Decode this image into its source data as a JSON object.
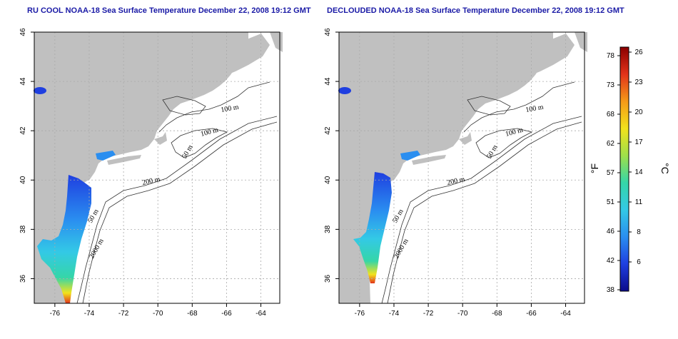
{
  "panels": [
    {
      "title": "RU COOL NOAA-18 Sea Surface Temperature December 22, 2008 19:12 GMT"
    },
    {
      "title": "DECLOUDED NOAA-18 Sea Surface Temperature December 22, 2008 19:12 GMT"
    }
  ],
  "map": {
    "lon_ticks": [
      "-76",
      "-74",
      "-72",
      "-70",
      "-68",
      "-66",
      "-64"
    ],
    "lat_ticks": [
      "36",
      "38",
      "40",
      "42",
      "44",
      "46"
    ],
    "contour_labels": [
      "100 m",
      "100 m",
      "50 m",
      "200 m",
      "50 m",
      "2000 m"
    ],
    "colors": {
      "land": "#c0c0c0",
      "ocean": "#ffffff",
      "grid": "#aaaaaa",
      "contour": "#333333"
    }
  },
  "colorbar": {
    "f_label": "°F",
    "c_label": "°C",
    "f_ticks": [
      "78",
      "73",
      "68",
      "62",
      "57",
      "51",
      "46",
      "42",
      "38"
    ],
    "c_ticks": [
      "26",
      "23",
      "20",
      "17",
      "14",
      "11",
      "8",
      "6"
    ],
    "colors": [
      "#0b0b8a",
      "#1f3fe0",
      "#2a8ef0",
      "#33c9e6",
      "#35d6a8",
      "#9fe04a",
      "#f2e21c",
      "#f59a18",
      "#e2331a",
      "#8b0000"
    ]
  }
}
